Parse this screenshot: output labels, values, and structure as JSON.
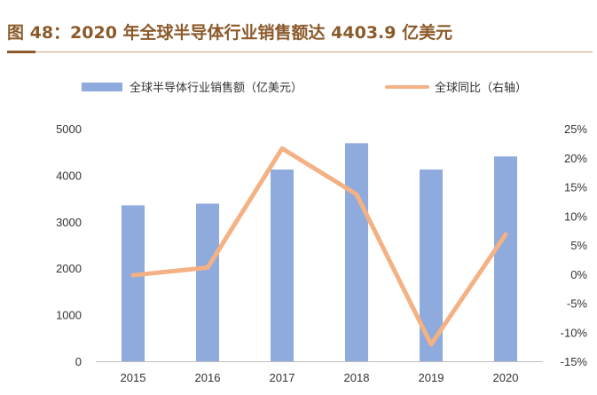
{
  "title": "图 48：2020 年全球半导体行业销售额达 4403.9 亿美元",
  "colors": {
    "bar": "#8faadc",
    "line": "#f4b183",
    "title": "#8B5A2B"
  },
  "chart_data": {
    "type": "bar",
    "categories": [
      "2015",
      "2016",
      "2017",
      "2018",
      "2019",
      "2020"
    ],
    "series": [
      {
        "name": "全球半导体行业销售额（亿美元）",
        "type": "bar",
        "axis": "left",
        "values": [
          3352,
          3389,
          4122,
          4688,
          4123,
          4403.9
        ]
      },
      {
        "name": "全球同比（右轴）",
        "type": "line",
        "axis": "right",
        "values": [
          -0.2,
          1.1,
          21.6,
          13.7,
          -12.1,
          6.8
        ]
      }
    ],
    "ylim": [
      0,
      5000
    ],
    "y_ticks": [
      "0",
      "1000",
      "2000",
      "3000",
      "4000",
      "5000"
    ],
    "y2lim": [
      -15,
      25
    ],
    "y2_ticks": [
      "-15%",
      "-10%",
      "-5%",
      "0%",
      "5%",
      "10%",
      "15%",
      "20%",
      "25%"
    ],
    "legend_position": "top"
  }
}
